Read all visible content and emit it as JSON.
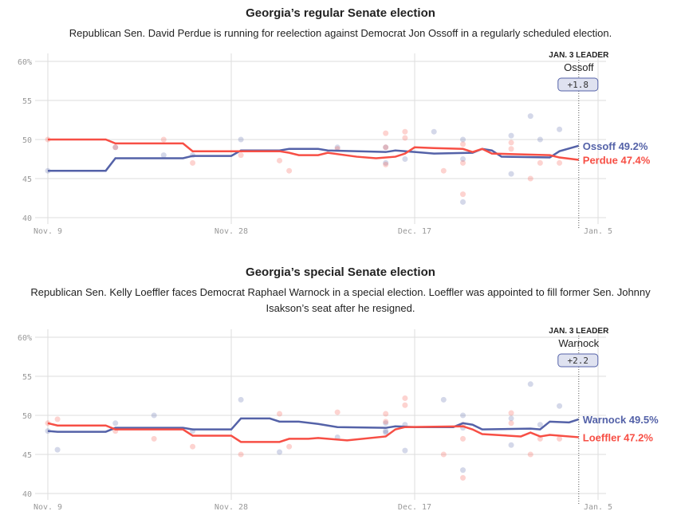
{
  "chart_data": [
    {
      "type": "line",
      "title": "Georgia’s regular Senate election",
      "subtitle": "Republican Sen. David Perdue is running for reelection against Democrat Jon Ossoff in a regularly scheduled election.",
      "ylim": [
        40,
        60
      ],
      "yticks": [
        "60%",
        "55",
        "50",
        "45",
        "40"
      ],
      "ytick_values": [
        60,
        55,
        50,
        45,
        40
      ],
      "xticks": [
        "Nov. 9",
        "Nov. 28",
        "Dec. 17",
        "Jan. 5"
      ],
      "xtick_days": [
        0,
        19,
        38,
        57
      ],
      "x_unit": "days since Nov. 9",
      "leader": {
        "heading": "JAN. 3 LEADER",
        "name": "Ossoff",
        "margin": "+1.8",
        "day": 55
      },
      "series": [
        {
          "name": "Ossoff",
          "color": "#5462a8",
          "end_label": "Ossoff 49.2%",
          "points": [
            [
              0,
              46
            ],
            [
              6,
              46
            ],
            [
              7,
              47.6
            ],
            [
              14,
              47.6
            ],
            [
              15,
              47.9
            ],
            [
              19,
              47.9
            ],
            [
              20,
              48.6
            ],
            [
              24,
              48.6
            ],
            [
              25,
              48.8
            ],
            [
              28,
              48.8
            ],
            [
              29,
              48.6
            ],
            [
              35,
              48.4
            ],
            [
              36,
              48.6
            ],
            [
              38,
              48.4
            ],
            [
              40,
              48.2
            ],
            [
              44,
              48.3
            ],
            [
              45,
              48.8
            ],
            [
              46,
              48.6
            ],
            [
              47,
              47.8
            ],
            [
              52,
              47.7
            ],
            [
              53,
              48.5
            ],
            [
              55,
              49.2
            ]
          ],
          "polls": [
            [
              0,
              46
            ],
            [
              7,
              49
            ],
            [
              12,
              48
            ],
            [
              15,
              48
            ],
            [
              20,
              50
            ],
            [
              30,
              49
            ],
            [
              35,
              49
            ],
            [
              35,
              47
            ],
            [
              37,
              47.5
            ],
            [
              40,
              51
            ],
            [
              43,
              50
            ],
            [
              43,
              47.5
            ],
            [
              43,
              42
            ],
            [
              48,
              50.5
            ],
            [
              48,
              45.6
            ],
            [
              50,
              53
            ],
            [
              51,
              50
            ],
            [
              53,
              51.3
            ]
          ]
        },
        {
          "name": "Perdue",
          "color": "#f74f45",
          "end_label": "Perdue 47.4%",
          "points": [
            [
              0,
              50
            ],
            [
              6,
              50
            ],
            [
              7,
              49.5
            ],
            [
              14,
              49.5
            ],
            [
              15,
              48.5
            ],
            [
              24,
              48.5
            ],
            [
              25,
              48.3
            ],
            [
              26,
              48
            ],
            [
              28,
              48
            ],
            [
              29,
              48.3
            ],
            [
              32,
              47.8
            ],
            [
              34,
              47.6
            ],
            [
              36,
              47.8
            ],
            [
              37,
              48.2
            ],
            [
              38,
              49
            ],
            [
              40,
              48.9
            ],
            [
              43,
              48.8
            ],
            [
              44,
              48.4
            ],
            [
              45,
              48.8
            ],
            [
              46,
              48.2
            ],
            [
              52,
              48
            ],
            [
              53,
              47.7
            ],
            [
              55,
              47.4
            ]
          ],
          "polls": [
            [
              0,
              50
            ],
            [
              7,
              49
            ],
            [
              12,
              50
            ],
            [
              15,
              47
            ],
            [
              20,
              48
            ],
            [
              24,
              47.3
            ],
            [
              25,
              46
            ],
            [
              30,
              48.8
            ],
            [
              35,
              50.8
            ],
            [
              35,
              49
            ],
            [
              35,
              46.8
            ],
            [
              37,
              51
            ],
            [
              37,
              50.2
            ],
            [
              41,
              46
            ],
            [
              43,
              49.4
            ],
            [
              43,
              47
            ],
            [
              43,
              43
            ],
            [
              48,
              49.6
            ],
            [
              48,
              48.8
            ],
            [
              50,
              45
            ],
            [
              51,
              47
            ],
            [
              53,
              47
            ]
          ]
        }
      ]
    },
    {
      "type": "line",
      "title": "Georgia’s special Senate election",
      "subtitle": "Republican Sen. Kelly Loeffler faces Democrat Raphael Warnock in a special election. Loeffler was appointed to fill former Sen. Johnny Isakson’s seat after he resigned.",
      "ylim": [
        40,
        60
      ],
      "yticks": [
        "60%",
        "55",
        "50",
        "45",
        "40"
      ],
      "ytick_values": [
        60,
        55,
        50,
        45,
        40
      ],
      "xticks": [
        "Nov. 9",
        "Nov. 28",
        "Dec. 17",
        "Jan. 5"
      ],
      "xtick_days": [
        0,
        19,
        38,
        57
      ],
      "x_unit": "days since Nov. 9",
      "leader": {
        "heading": "JAN. 3 LEADER",
        "name": "Warnock",
        "margin": "+2.2",
        "day": 55
      },
      "series": [
        {
          "name": "Warnock",
          "color": "#5462a8",
          "end_label": "Warnock 49.5%",
          "points": [
            [
              0,
              48
            ],
            [
              1,
              47.9
            ],
            [
              6,
              47.9
            ],
            [
              7,
              48.4
            ],
            [
              14,
              48.4
            ],
            [
              15,
              48.2
            ],
            [
              19,
              48.2
            ],
            [
              20,
              49.6
            ],
            [
              23,
              49.6
            ],
            [
              24,
              49.2
            ],
            [
              26,
              49.2
            ],
            [
              28,
              48.9
            ],
            [
              30,
              48.5
            ],
            [
              35,
              48.4
            ],
            [
              36,
              48.6
            ],
            [
              38,
              48.5
            ],
            [
              42,
              48.5
            ],
            [
              43,
              49
            ],
            [
              44,
              48.8
            ],
            [
              45,
              48.2
            ],
            [
              50,
              48.3
            ],
            [
              51,
              48.2
            ],
            [
              52,
              49.2
            ],
            [
              54,
              49.1
            ],
            [
              55,
              49.5
            ]
          ],
          "polls": [
            [
              0,
              48
            ],
            [
              1,
              45.6
            ],
            [
              7,
              49
            ],
            [
              11,
              50
            ],
            [
              15,
              48
            ],
            [
              20,
              52
            ],
            [
              24,
              45.3
            ],
            [
              30,
              47.2
            ],
            [
              35,
              49
            ],
            [
              35,
              48
            ],
            [
              35,
              47.8
            ],
            [
              37,
              48.8
            ],
            [
              37,
              45.5
            ],
            [
              41,
              52
            ],
            [
              43,
              50
            ],
            [
              43,
              48.4
            ],
            [
              43,
              43
            ],
            [
              48,
              49.6
            ],
            [
              48,
              46.2
            ],
            [
              50,
              54
            ],
            [
              51,
              48.8
            ],
            [
              53,
              51.2
            ]
          ]
        },
        {
          "name": "Loeffler",
          "color": "#f74f45",
          "end_label": "Loeffler 47.2%",
          "points": [
            [
              0,
              49
            ],
            [
              1,
              48.7
            ],
            [
              6,
              48.7
            ],
            [
              7,
              48.2
            ],
            [
              14,
              48.2
            ],
            [
              15,
              47.4
            ],
            [
              19,
              47.4
            ],
            [
              20,
              46.6
            ],
            [
              24,
              46.6
            ],
            [
              25,
              47
            ],
            [
              27,
              47
            ],
            [
              28,
              47.1
            ],
            [
              31,
              46.8
            ],
            [
              35,
              47.3
            ],
            [
              36,
              48.2
            ],
            [
              37,
              48.5
            ],
            [
              43,
              48.6
            ],
            [
              44,
              48.2
            ],
            [
              45,
              47.6
            ],
            [
              49,
              47.3
            ],
            [
              50,
              47.8
            ],
            [
              51,
              47.3
            ],
            [
              52,
              47.5
            ],
            [
              55,
              47.2
            ]
          ],
          "polls": [
            [
              0,
              49
            ],
            [
              1,
              49.5
            ],
            [
              7,
              48
            ],
            [
              11,
              47
            ],
            [
              15,
              46
            ],
            [
              20,
              45
            ],
            [
              24,
              50.2
            ],
            [
              25,
              46
            ],
            [
              30,
              50.4
            ],
            [
              35,
              50.2
            ],
            [
              35,
              49.2
            ],
            [
              37,
              52.2
            ],
            [
              37,
              51.3
            ],
            [
              41,
              45
            ],
            [
              43,
              48.8
            ],
            [
              43,
              47
            ],
            [
              43,
              42
            ],
            [
              48,
              50.3
            ],
            [
              48,
              49
            ],
            [
              50,
              45
            ],
            [
              51,
              47
            ],
            [
              53,
              47
            ]
          ]
        }
      ]
    }
  ]
}
